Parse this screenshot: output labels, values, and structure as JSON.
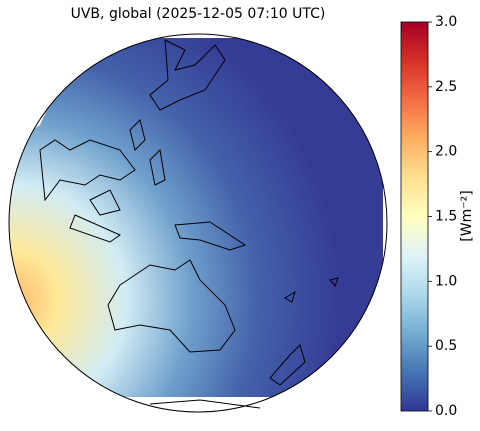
{
  "map": {
    "title": "UVB, global (2025-12-05 07:10 UTC)"
  },
  "colorbar": {
    "label": "[Wm⁻²]",
    "lim": [
      0,
      3
    ],
    "ticks": [
      {
        "value": 0,
        "label": "0.0"
      },
      {
        "value": 0.5,
        "label": "0.5"
      },
      {
        "value": 1,
        "label": "1.0"
      },
      {
        "value": 1.5,
        "label": "1.5"
      },
      {
        "value": 2,
        "label": "2.0"
      },
      {
        "value": 2.5,
        "label": "2.5"
      },
      {
        "value": 3,
        "label": "3.0"
      }
    ]
  }
}
